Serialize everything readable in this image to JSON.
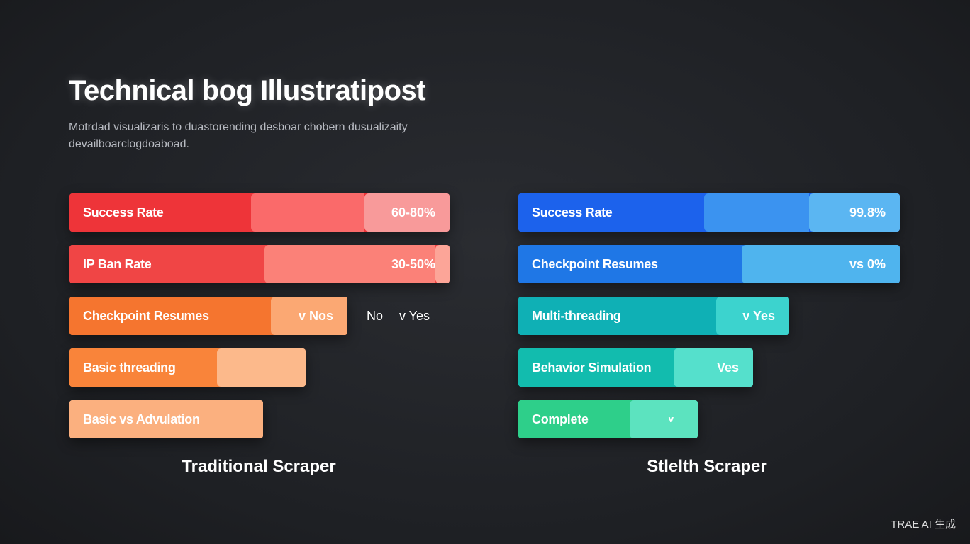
{
  "header": {
    "title": "Technical bog Illustratipost",
    "subtitle_lines": [
      "Motrdad visualizaris to duastorending desboar chobern dusualizaity",
      "devailboarclogdoaboad."
    ]
  },
  "panels": [
    {
      "name": "Traditional Scraper",
      "rows": [
        {
          "label": "Success Rate",
          "value": "60-80%"
        },
        {
          "label": "IP Ban Rate",
          "value": "30-50%"
        },
        {
          "label": "Checkpoint Resumes",
          "value": "v Nos",
          "extra": [
            "No",
            "v Yes"
          ]
        },
        {
          "label": "Basic threading"
        },
        {
          "label": "Basic vs Advulation"
        }
      ]
    },
    {
      "name": "Stlelth Scraper",
      "rows": [
        {
          "label": "Success Rate",
          "value": "99.8%"
        },
        {
          "label": "Checkpoint Resumes",
          "value": "vs 0%"
        },
        {
          "label": "Multi-threading",
          "value": "v Yes"
        },
        {
          "label": "Behavior Simulation",
          "value": "Ves"
        },
        {
          "label": "Complete",
          "value": "v"
        }
      ]
    }
  ],
  "footer": "TRAE AI 生成"
}
